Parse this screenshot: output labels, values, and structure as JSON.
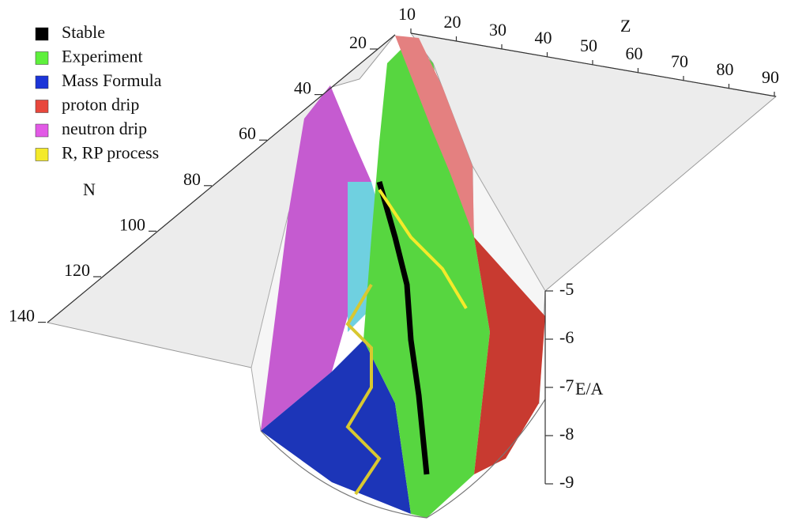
{
  "chart_data": {
    "type": "surface3d",
    "xlabel": "Z",
    "ylabel": "N",
    "zlabel": "E/A",
    "xticks": [
      10,
      20,
      30,
      40,
      50,
      60,
      70,
      80,
      90
    ],
    "yticks": [
      20,
      40,
      60,
      80,
      100,
      120,
      140
    ],
    "zlim": [
      -9,
      -5
    ],
    "zticks": [
      -5,
      -6,
      -7,
      -8,
      -9
    ],
    "series": [
      {
        "name": "Stable",
        "color": "#000000"
      },
      {
        "name": "Experiment",
        "color": "#5ef03c"
      },
      {
        "name": "Mass Formula",
        "color": "#1c35d8"
      },
      {
        "name": "proton drip",
        "color": "#e8473c"
      },
      {
        "name": "neutron drip",
        "color": "#e25ae6"
      },
      {
        "name": "R, RP process",
        "color": "#f4ea2a"
      }
    ]
  }
}
